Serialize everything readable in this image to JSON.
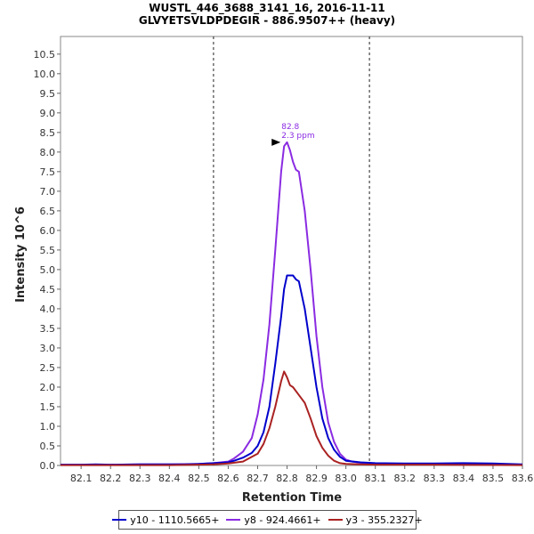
{
  "chart_data": {
    "type": "line",
    "title": "WUSTL_446_3688_3141_16, 2016-11-11",
    "subtitle": "GLVYETSVLDPDEGIR - 886.9507++ (heavy)",
    "xlabel": "Retention Time",
    "ylabel": "Intensity 10^6",
    "xlim": [
      82.03,
      83.6
    ],
    "ylim": [
      0,
      10.95
    ],
    "x_ticks": [
      "82.1",
      "82.2",
      "82.3",
      "82.4",
      "82.5",
      "82.6",
      "82.7",
      "82.8",
      "82.9",
      "83.0",
      "83.1",
      "83.2",
      "83.3",
      "83.4",
      "83.5",
      "83.6"
    ],
    "y_ticks": [
      "0.0",
      "0.5",
      "1.0",
      "1.5",
      "2.0",
      "2.5",
      "3.0",
      "3.5",
      "4.0",
      "4.5",
      "5.0",
      "5.5",
      "6.0",
      "6.5",
      "7.0",
      "7.5",
      "8.0",
      "8.5",
      "9.0",
      "9.5",
      "10.0",
      "10.5"
    ],
    "integration_bounds": [
      82.55,
      83.08
    ],
    "peak_annotation": {
      "rt": 82.79,
      "intensity": 8.25,
      "line1": "82.8",
      "line2": "2.3 ppm"
    },
    "series": [
      {
        "name": "y10 - 1110.5665+",
        "color": "#0000cc",
        "x": [
          82.03,
          82.1,
          82.15,
          82.2,
          82.3,
          82.35,
          82.4,
          82.45,
          82.5,
          82.55,
          82.6,
          82.62,
          82.65,
          82.68,
          82.7,
          82.72,
          82.74,
          82.76,
          82.78,
          82.79,
          82.8,
          82.82,
          82.83,
          82.84,
          82.86,
          82.88,
          82.9,
          82.92,
          82.94,
          82.96,
          82.98,
          83.0,
          83.05,
          83.1,
          83.2,
          83.3,
          83.4,
          83.5,
          83.6
        ],
        "values": [
          0.02,
          0.02,
          0.03,
          0.02,
          0.03,
          0.03,
          0.03,
          0.03,
          0.04,
          0.06,
          0.08,
          0.12,
          0.2,
          0.32,
          0.5,
          0.85,
          1.5,
          2.6,
          3.8,
          4.5,
          4.85,
          4.85,
          4.75,
          4.7,
          4.0,
          3.0,
          2.0,
          1.2,
          0.7,
          0.4,
          0.22,
          0.12,
          0.08,
          0.06,
          0.05,
          0.05,
          0.06,
          0.05,
          0.03
        ]
      },
      {
        "name": "y8 - 924.4661+",
        "color": "#8a2be2",
        "x": [
          82.03,
          82.1,
          82.2,
          82.3,
          82.4,
          82.5,
          82.55,
          82.6,
          82.62,
          82.65,
          82.68,
          82.7,
          82.72,
          82.74,
          82.76,
          82.78,
          82.79,
          82.8,
          82.81,
          82.82,
          82.83,
          82.84,
          82.86,
          82.88,
          82.9,
          82.92,
          82.94,
          82.96,
          82.98,
          83.0,
          83.02,
          83.05,
          83.1,
          83.2,
          83.3,
          83.4,
          83.5,
          83.6
        ],
        "values": [
          0.02,
          0.02,
          0.02,
          0.03,
          0.03,
          0.04,
          0.06,
          0.1,
          0.18,
          0.35,
          0.7,
          1.3,
          2.2,
          3.6,
          5.5,
          7.5,
          8.15,
          8.25,
          8.05,
          7.75,
          7.55,
          7.5,
          6.5,
          5.0,
          3.3,
          2.0,
          1.1,
          0.6,
          0.3,
          0.15,
          0.1,
          0.07,
          0.05,
          0.04,
          0.04,
          0.05,
          0.04,
          0.02
        ]
      },
      {
        "name": "y3 - 355.2327+",
        "color": "#aa2222",
        "x": [
          82.03,
          82.2,
          82.4,
          82.5,
          82.55,
          82.6,
          82.65,
          82.7,
          82.72,
          82.74,
          82.76,
          82.78,
          82.79,
          82.8,
          82.81,
          82.82,
          82.84,
          82.86,
          82.88,
          82.9,
          82.92,
          82.94,
          82.96,
          82.98,
          83.0,
          83.05,
          83.1,
          83.3,
          83.6
        ],
        "values": [
          0.01,
          0.01,
          0.01,
          0.02,
          0.03,
          0.05,
          0.1,
          0.3,
          0.55,
          0.95,
          1.5,
          2.15,
          2.4,
          2.25,
          2.05,
          2.0,
          1.8,
          1.6,
          1.2,
          0.75,
          0.45,
          0.25,
          0.12,
          0.06,
          0.04,
          0.03,
          0.02,
          0.02,
          0.01
        ]
      }
    ]
  }
}
